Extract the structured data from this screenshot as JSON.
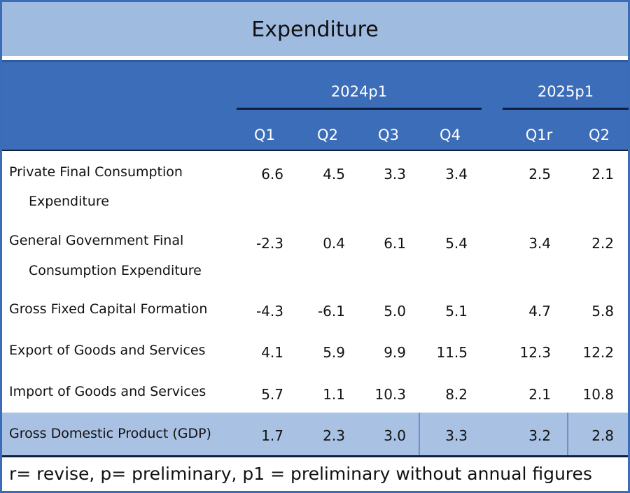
{
  "chart_data": {
    "type": "table",
    "title": "Expenditure",
    "column_groups": [
      {
        "label": "2024p1",
        "columns": [
          "Q1",
          "Q2",
          "Q3",
          "Q4"
        ]
      },
      {
        "label": "2025p1",
        "columns": [
          "Q1r",
          "Q2"
        ]
      }
    ],
    "columns": [
      "Q1",
      "Q2",
      "Q3",
      "Q4",
      "Q1r",
      "Q2"
    ],
    "rows": [
      {
        "label_line1": "Private Final Consumption",
        "label_line2": "Expenditure",
        "values": [
          "6.6",
          "4.5",
          "3.3",
          "3.4",
          "2.5",
          "2.1"
        ]
      },
      {
        "label_line1": "General Government Final",
        "label_line2": "Consumption Expenditure",
        "values": [
          "-2.3",
          "0.4",
          "6.1",
          "5.4",
          "3.4",
          "2.2"
        ]
      },
      {
        "label_line1": "Gross Fixed Capital Formation",
        "label_line2": "",
        "values": [
          "-4.3",
          "-6.1",
          "5.0",
          "5.1",
          "4.7",
          "5.8"
        ]
      },
      {
        "label_line1": "Export of Goods and Services",
        "label_line2": "",
        "values": [
          "4.1",
          "5.9",
          "9.9",
          "11.5",
          "12.3",
          "12.2"
        ]
      },
      {
        "label_line1": "Import of Goods and Services",
        "label_line2": "",
        "values": [
          "5.7",
          "1.1",
          "10.3",
          "8.2",
          "2.1",
          "10.8"
        ]
      },
      {
        "label_line1": "Gross Domestic Product (GDP)",
        "label_line2": "",
        "values": [
          "1.7",
          "2.3",
          "3.0",
          "3.3",
          "3.2",
          "2.8"
        ]
      }
    ],
    "highlight_row": "Gross Domestic Product (GDP)"
  },
  "footnote": "r= revise, p= preliminary, p1 = preliminary without annual figures",
  "colors": {
    "title_band": "#9fbbe0",
    "header_band": "#3c6db8",
    "gdp_band": "#a9c1e3",
    "border": "#3b6cb7"
  }
}
